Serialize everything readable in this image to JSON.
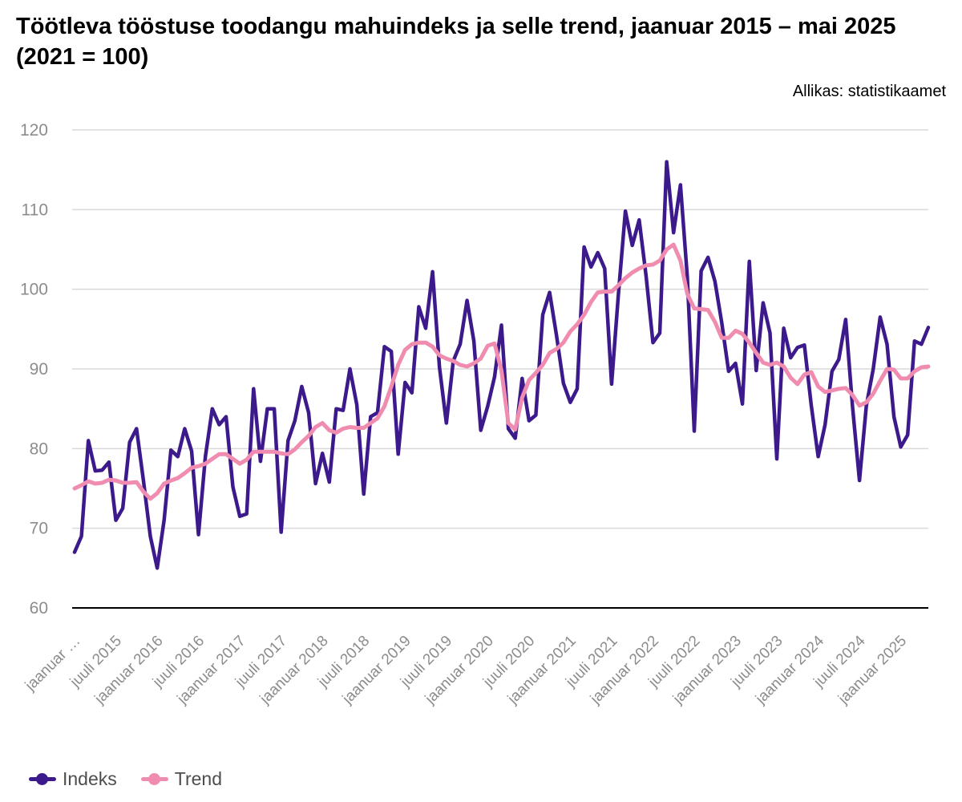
{
  "title": "Töötleva tööstuse toodangu mahuindeks ja selle trend, jaanuar 2015 – mai 2025 (2021 = 100)",
  "source": "Allikas: statistikaamet",
  "colors": {
    "index": "#3d1a8c",
    "trend": "#f08cb0",
    "grid": "#d9d9d9",
    "axis": "#000000",
    "tick": "#8c8c8c"
  },
  "chart_data": {
    "type": "line",
    "title": "Töötleva tööstuse toodangu mahuindeks ja selle trend, jaanuar 2015 – mai 2025 (2021 = 100)",
    "xlabel": "",
    "ylabel": "",
    "ylim": [
      60,
      120
    ],
    "yticks": [
      60,
      70,
      80,
      90,
      100,
      110,
      120
    ],
    "grid": "horizontal",
    "legend_position": "bottom-left",
    "x_start": "jaanuar 2015",
    "x_end": "mai 2025",
    "x_tick_labels": [
      "jaanuar …",
      "juuli 2015",
      "jaanuar 2016",
      "juuli 2016",
      "jaanuar 2017",
      "juuli 2017",
      "jaanuar 2018",
      "juuli 2018",
      "jaanuar 2019",
      "juuli 2019",
      "jaanuar 2020",
      "juuli 2020",
      "jaanuar 2021",
      "juuli 2021",
      "jaanuar 2022",
      "juuli 2022",
      "jaanuar 2023",
      "juuli 2023",
      "jaanuar 2024",
      "juuli 2024",
      "jaanuar 2025"
    ],
    "series": [
      {
        "name": "Indeks",
        "color": "#3d1a8c",
        "values": [
          67.0,
          69.0,
          81.0,
          77.2,
          77.3,
          78.3,
          71.0,
          72.5,
          80.8,
          82.5,
          76.0,
          69.0,
          65.0,
          71.0,
          79.8,
          79.0,
          82.5,
          79.7,
          69.2,
          79.0,
          85.0,
          83.0,
          84.0,
          75.2,
          71.5,
          71.8,
          87.5,
          78.4,
          85.0,
          85.0,
          69.5,
          81.0,
          83.5,
          87.8,
          84.5,
          75.6,
          79.4,
          75.8,
          85.0,
          84.8,
          90.0,
          85.5,
          74.3,
          84.0,
          84.5,
          92.8,
          92.2,
          79.3,
          88.3,
          87.0,
          97.8,
          95.1,
          102.2,
          90.2,
          83.2,
          91.0,
          93.1,
          98.6,
          93.5,
          82.3,
          85.3,
          89.0,
          95.5,
          82.5,
          81.3,
          88.8,
          83.5,
          84.2,
          96.8,
          99.6,
          94.2,
          88.2,
          85.8,
          87.5,
          105.3,
          102.8,
          104.6,
          102.6,
          88.1,
          99.5,
          109.8,
          105.5,
          108.7,
          101.7,
          93.3,
          94.5,
          116.0,
          107.1,
          113.1,
          101.5,
          82.2,
          102.3,
          104.0,
          101.0,
          95.8,
          89.7,
          90.7,
          85.6,
          103.5,
          89.8,
          98.3,
          94.5,
          78.7,
          95.1,
          91.4,
          92.7,
          93.0,
          85.4,
          79.0,
          83.0,
          89.7,
          91.2,
          96.2,
          85.2,
          76.0,
          85.4,
          90.0,
          96.5,
          93.1,
          84.0,
          80.2,
          81.7,
          93.5,
          93.1,
          95.2
        ]
      },
      {
        "name": "Trend",
        "color": "#f08cb0",
        "values": [
          75.0,
          75.4,
          75.9,
          75.6,
          75.7,
          76.1,
          76.0,
          75.7,
          75.7,
          75.8,
          74.6,
          73.7,
          74.4,
          75.6,
          76.0,
          76.3,
          76.9,
          77.6,
          77.8,
          78.1,
          78.7,
          79.3,
          79.3,
          78.7,
          78.1,
          78.6,
          79.6,
          79.6,
          79.6,
          79.6,
          79.4,
          79.3,
          79.9,
          80.8,
          81.6,
          82.7,
          83.2,
          82.3,
          82.0,
          82.5,
          82.7,
          82.6,
          82.6,
          83.2,
          83.8,
          85.3,
          87.8,
          90.5,
          92.4,
          93.1,
          93.3,
          93.3,
          92.8,
          91.7,
          91.3,
          91.0,
          90.5,
          90.3,
          90.7,
          91.3,
          92.9,
          93.2,
          89.8,
          83.2,
          82.4,
          86.4,
          88.6,
          89.5,
          90.5,
          92.0,
          92.5,
          93.3,
          94.7,
          95.6,
          96.8,
          98.4,
          99.6,
          99.7,
          99.7,
          100.5,
          101.4,
          102.1,
          102.6,
          103.0,
          103.1,
          103.6,
          105.0,
          105.6,
          103.6,
          99.4,
          97.6,
          97.5,
          97.4,
          95.9,
          93.9,
          93.9,
          94.8,
          94.4,
          93.3,
          92.0,
          90.8,
          90.5,
          90.8,
          90.3,
          88.9,
          88.1,
          89.3,
          89.6,
          87.8,
          87.1,
          87.3,
          87.5,
          87.6,
          86.7,
          85.4,
          85.8,
          86.9,
          88.5,
          90.0,
          89.9,
          88.8,
          88.8,
          89.7,
          90.2,
          90.3
        ]
      }
    ]
  },
  "legend": {
    "items": [
      {
        "label": "Indeks",
        "color": "#3d1a8c"
      },
      {
        "label": "Trend",
        "color": "#f08cb0"
      }
    ]
  }
}
